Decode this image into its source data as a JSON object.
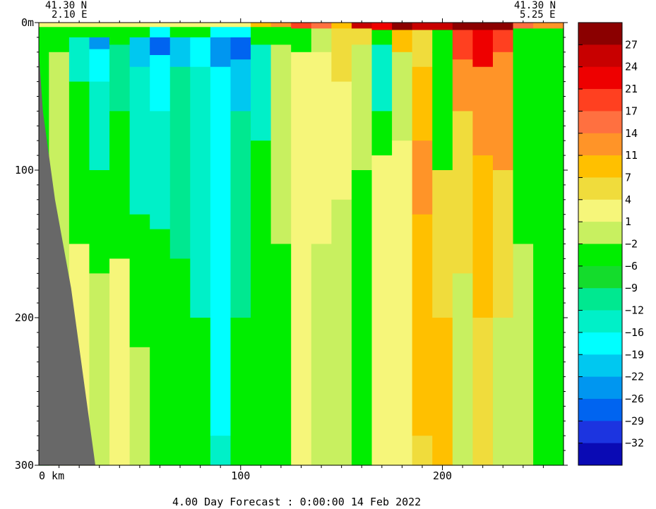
{
  "header": {
    "left_lat": "41.30 N",
    "left_lon": "2.10 E",
    "right_lat": "41.30 N",
    "right_lon": "5.25 E"
  },
  "footer": {
    "forecast_text": "4.00 Day Forecast :  0:00:00  14 Feb 2022"
  },
  "chart_data": {
    "type": "heatmap",
    "xlabel": "km",
    "x_ticks": [
      0,
      100,
      200
    ],
    "x_range": [
      0,
      260
    ],
    "y_ticks": [
      {
        "value": 0,
        "label": "0m"
      },
      {
        "value": 100,
        "label": "100"
      },
      {
        "value": 200,
        "label": "200"
      },
      {
        "value": 300,
        "label": "300"
      }
    ],
    "y_range": [
      0,
      300
    ],
    "y_inverted": true,
    "colorbar": {
      "tick_labels": [
        "27",
        "24",
        "21",
        "17",
        "14",
        "11",
        "7",
        "4",
        "1",
        "-2",
        "-6",
        "-9",
        "-12",
        "-16",
        "-19",
        "-22",
        "-26",
        "-29",
        "-32"
      ],
      "colors": [
        "#8b0000",
        "#c80000",
        "#ee0000",
        "#ff4020",
        "#ff7040",
        "#ff9428",
        "#ffc000",
        "#f0dc3c",
        "#f6f67a",
        "#c8f060",
        "#00ee00",
        "#14dc2c",
        "#00e890",
        "#00f0c8",
        "#00ffff",
        "#00c8f0",
        "#0096f0",
        "#0064f0",
        "#1c34e0",
        "#0a0ab4"
      ]
    },
    "columns": [
      {
        "x": 0,
        "bands": [
          [
            0,
            3,
            "#f6f67a"
          ],
          [
            3,
            18,
            "#00ee00"
          ],
          [
            18,
            300,
            "#00ee00"
          ]
        ]
      },
      {
        "x": 10,
        "bands": [
          [
            0,
            3,
            "#f6f67a"
          ],
          [
            3,
            20,
            "#00ee00"
          ],
          [
            20,
            300,
            "#c8f060"
          ]
        ]
      },
      {
        "x": 20,
        "bands": [
          [
            0,
            3,
            "#f6f67a"
          ],
          [
            3,
            10,
            "#00ee00"
          ],
          [
            10,
            40,
            "#00f0c8"
          ],
          [
            40,
            150,
            "#00ee00"
          ],
          [
            150,
            300,
            "#f6f67a"
          ]
        ]
      },
      {
        "x": 30,
        "bands": [
          [
            0,
            3,
            "#f6f67a"
          ],
          [
            3,
            10,
            "#00ee00"
          ],
          [
            10,
            18,
            "#0096f0"
          ],
          [
            18,
            40,
            "#00ffff"
          ],
          [
            40,
            100,
            "#00f0c8"
          ],
          [
            100,
            170,
            "#00ee00"
          ],
          [
            170,
            300,
            "#c8f060"
          ]
        ]
      },
      {
        "x": 40,
        "bands": [
          [
            0,
            3,
            "#f6f67a"
          ],
          [
            3,
            15,
            "#00ee00"
          ],
          [
            15,
            60,
            "#00e890"
          ],
          [
            60,
            160,
            "#00ee00"
          ],
          [
            160,
            300,
            "#f6f67a"
          ]
        ]
      },
      {
        "x": 50,
        "bands": [
          [
            0,
            3,
            "#f6f67a"
          ],
          [
            3,
            10,
            "#00ee00"
          ],
          [
            10,
            30,
            "#00c8f0"
          ],
          [
            30,
            130,
            "#00f0c8"
          ],
          [
            130,
            220,
            "#00ee00"
          ],
          [
            220,
            300,
            "#c8f060"
          ]
        ]
      },
      {
        "x": 60,
        "bands": [
          [
            0,
            3,
            "#f6f67a"
          ],
          [
            3,
            10,
            "#00ffff"
          ],
          [
            10,
            22,
            "#0064f0"
          ],
          [
            22,
            60,
            "#00ffff"
          ],
          [
            60,
            140,
            "#00f0c8"
          ],
          [
            140,
            300,
            "#00ee00"
          ]
        ]
      },
      {
        "x": 70,
        "bands": [
          [
            0,
            3,
            "#f6f67a"
          ],
          [
            3,
            10,
            "#00ee00"
          ],
          [
            10,
            30,
            "#00c8f0"
          ],
          [
            30,
            160,
            "#00e890"
          ],
          [
            160,
            300,
            "#00ee00"
          ]
        ]
      },
      {
        "x": 80,
        "bands": [
          [
            0,
            3,
            "#f6f67a"
          ],
          [
            3,
            10,
            "#00ee00"
          ],
          [
            10,
            30,
            "#00ffff"
          ],
          [
            30,
            200,
            "#00f0c8"
          ],
          [
            200,
            300,
            "#00ee00"
          ]
        ]
      },
      {
        "x": 90,
        "bands": [
          [
            0,
            3,
            "#f6f67a"
          ],
          [
            3,
            10,
            "#00ffff"
          ],
          [
            10,
            30,
            "#0096f0"
          ],
          [
            30,
            280,
            "#00ffff"
          ],
          [
            280,
            300,
            "#00f0c8"
          ]
        ]
      },
      {
        "x": 100,
        "bands": [
          [
            0,
            3,
            "#f6f67a"
          ],
          [
            3,
            10,
            "#00ffff"
          ],
          [
            10,
            25,
            "#0064f0"
          ],
          [
            25,
            60,
            "#00c8f0"
          ],
          [
            60,
            200,
            "#00e890"
          ],
          [
            200,
            300,
            "#00ee00"
          ]
        ]
      },
      {
        "x": 110,
        "bands": [
          [
            0,
            3,
            "#ffc000"
          ],
          [
            3,
            15,
            "#00ee00"
          ],
          [
            15,
            80,
            "#00f0c8"
          ],
          [
            80,
            300,
            "#00ee00"
          ]
        ]
      },
      {
        "x": 120,
        "bands": [
          [
            0,
            3,
            "#ff9428"
          ],
          [
            3,
            15,
            "#00ee00"
          ],
          [
            15,
            150,
            "#c8f060"
          ],
          [
            150,
            300,
            "#00ee00"
          ]
        ]
      },
      {
        "x": 130,
        "bands": [
          [
            0,
            4,
            "#ff4020"
          ],
          [
            4,
            20,
            "#00ee00"
          ],
          [
            20,
            300,
            "#f6f67a"
          ]
        ]
      },
      {
        "x": 140,
        "bands": [
          [
            0,
            4,
            "#ff7040"
          ],
          [
            4,
            20,
            "#c8f060"
          ],
          [
            20,
            150,
            "#f6f67a"
          ],
          [
            150,
            300,
            "#c8f060"
          ]
        ]
      },
      {
        "x": 150,
        "bands": [
          [
            0,
            4,
            "#ffc000"
          ],
          [
            4,
            40,
            "#f0dc3c"
          ],
          [
            40,
            120,
            "#f6f67a"
          ],
          [
            120,
            300,
            "#c8f060"
          ]
        ]
      },
      {
        "x": 160,
        "bands": [
          [
            0,
            4,
            "#c80000"
          ],
          [
            4,
            15,
            "#f0dc3c"
          ],
          [
            15,
            100,
            "#c8f060"
          ],
          [
            100,
            300,
            "#00ee00"
          ]
        ]
      },
      {
        "x": 170,
        "bands": [
          [
            0,
            5,
            "#ee0000"
          ],
          [
            5,
            15,
            "#00ee00"
          ],
          [
            15,
            60,
            "#00f0c8"
          ],
          [
            60,
            90,
            "#00ee00"
          ],
          [
            90,
            300,
            "#f6f67a"
          ]
        ]
      },
      {
        "x": 180,
        "bands": [
          [
            0,
            5,
            "#8b0000"
          ],
          [
            5,
            20,
            "#ffc000"
          ],
          [
            20,
            80,
            "#c8f060"
          ],
          [
            80,
            300,
            "#f6f67a"
          ]
        ]
      },
      {
        "x": 190,
        "bands": [
          [
            0,
            5,
            "#c80000"
          ],
          [
            5,
            30,
            "#f0dc3c"
          ],
          [
            30,
            80,
            "#ffc000"
          ],
          [
            80,
            130,
            "#ff9428"
          ],
          [
            130,
            280,
            "#ffc000"
          ],
          [
            280,
            300,
            "#f0dc3c"
          ]
        ]
      },
      {
        "x": 200,
        "bands": [
          [
            0,
            5,
            "#c80000"
          ],
          [
            5,
            20,
            "#00ee00"
          ],
          [
            20,
            100,
            "#00ee00"
          ],
          [
            100,
            200,
            "#f0dc3c"
          ],
          [
            200,
            300,
            "#ffc000"
          ]
        ]
      },
      {
        "x": 210,
        "bands": [
          [
            0,
            5,
            "#8b0000"
          ],
          [
            5,
            25,
            "#ff4020"
          ],
          [
            25,
            60,
            "#ff9428"
          ],
          [
            60,
            170,
            "#f0dc3c"
          ],
          [
            170,
            300,
            "#c8f060"
          ]
        ]
      },
      {
        "x": 220,
        "bands": [
          [
            0,
            5,
            "#8b0000"
          ],
          [
            5,
            30,
            "#ee0000"
          ],
          [
            30,
            90,
            "#ff9428"
          ],
          [
            90,
            200,
            "#ffc000"
          ],
          [
            200,
            300,
            "#f0dc3c"
          ]
        ]
      },
      {
        "x": 230,
        "bands": [
          [
            0,
            5,
            "#8b0000"
          ],
          [
            5,
            20,
            "#ff4020"
          ],
          [
            20,
            100,
            "#ff9428"
          ],
          [
            100,
            200,
            "#f0dc3c"
          ],
          [
            200,
            300,
            "#c8f060"
          ]
        ]
      },
      {
        "x": 240,
        "bands": [
          [
            0,
            4,
            "#ff7040"
          ],
          [
            4,
            20,
            "#00ee00"
          ],
          [
            20,
            150,
            "#00ee00"
          ],
          [
            150,
            300,
            "#c8f060"
          ]
        ]
      },
      {
        "x": 250,
        "bands": [
          [
            0,
            4,
            "#ff9428"
          ],
          [
            4,
            60,
            "#00ee00"
          ],
          [
            60,
            200,
            "#00ee00"
          ],
          [
            200,
            300,
            "#00ee00"
          ]
        ]
      },
      {
        "x": 260,
        "bands": [
          [
            0,
            4,
            "#ff9428"
          ],
          [
            4,
            200,
            "#00ee00"
          ],
          [
            200,
            300,
            "#00ee00"
          ]
        ]
      }
    ],
    "land_mask": [
      {
        "depth": 20,
        "x": 0
      },
      {
        "depth": 60,
        "x": 2
      },
      {
        "depth": 120,
        "x": 8
      },
      {
        "depth": 180,
        "x": 16
      },
      {
        "depth": 240,
        "x": 22
      },
      {
        "depth": 300,
        "x": 28
      }
    ],
    "land_color": "#686868"
  }
}
